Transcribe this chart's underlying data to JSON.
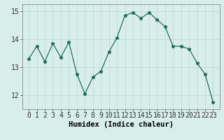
{
  "x": [
    0,
    1,
    2,
    3,
    4,
    5,
    6,
    7,
    8,
    9,
    10,
    11,
    12,
    13,
    14,
    15,
    16,
    17,
    18,
    19,
    20,
    21,
    22,
    23
  ],
  "y": [
    13.3,
    13.75,
    13.2,
    13.85,
    13.35,
    13.9,
    12.75,
    12.05,
    12.65,
    12.85,
    13.55,
    14.05,
    14.85,
    14.95,
    14.75,
    14.95,
    14.7,
    14.45,
    13.75,
    13.75,
    13.65,
    13.15,
    12.75,
    11.75
  ],
  "line_color": "#276b5e",
  "marker": "*",
  "marker_size": 3.5,
  "bg_color": "#d8eeeb",
  "grid_color": "#b8dcd8",
  "xlabel": "Humidex (Indice chaleur)",
  "ylim": [
    11.5,
    15.25
  ],
  "yticks": [
    12,
    13,
    14,
    15
  ],
  "xticks": [
    0,
    1,
    2,
    3,
    4,
    5,
    6,
    7,
    8,
    9,
    10,
    11,
    12,
    13,
    14,
    15,
    16,
    17,
    18,
    19,
    20,
    21,
    22,
    23
  ],
  "xlabel_fontsize": 7.5,
  "tick_fontsize": 7.0
}
